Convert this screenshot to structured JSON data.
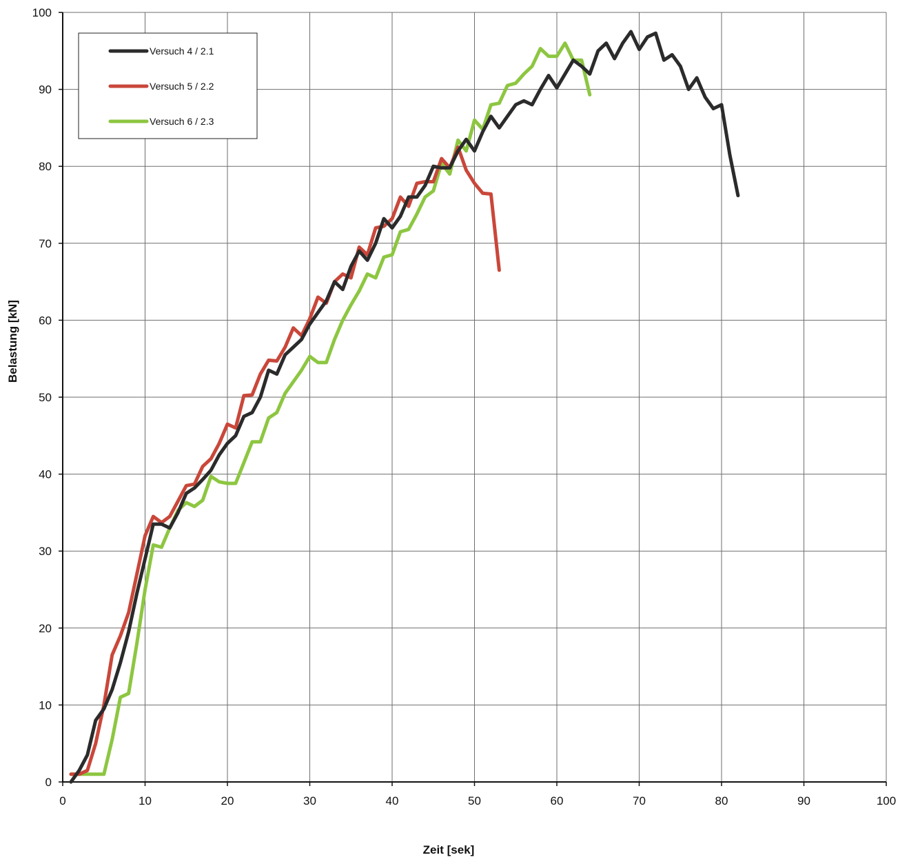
{
  "chart_data": {
    "type": "line",
    "title": "",
    "xlabel": "Zeit [sek]",
    "ylabel": "Belastung [kN]",
    "xlim": [
      0,
      100
    ],
    "ylim": [
      0,
      100
    ],
    "xticks": [
      0,
      10,
      20,
      30,
      40,
      50,
      60,
      70,
      80,
      90,
      100
    ],
    "yticks": [
      0,
      10,
      20,
      30,
      40,
      50,
      60,
      70,
      80,
      90,
      100
    ],
    "grid": true,
    "legend_position": "top-left",
    "series": [
      {
        "name": "Versuch 4 / 2.1",
        "color": "#2b2b2b",
        "points": [
          [
            1,
            0
          ],
          [
            2,
            1.5
          ],
          [
            3,
            3.5
          ],
          [
            4,
            8
          ],
          [
            5,
            9.5
          ],
          [
            6,
            12
          ],
          [
            7,
            15.5
          ],
          [
            8,
            19.5
          ],
          [
            9,
            24.5
          ],
          [
            10,
            29
          ],
          [
            11,
            33.5
          ],
          [
            12,
            33.5
          ],
          [
            13,
            33
          ],
          [
            14,
            35
          ],
          [
            15,
            37.5
          ],
          [
            16,
            38.2
          ],
          [
            17,
            39.3
          ],
          [
            18,
            40.5
          ],
          [
            19,
            42.5
          ],
          [
            20,
            44
          ],
          [
            21,
            45
          ],
          [
            22,
            47.5
          ],
          [
            23,
            48
          ],
          [
            24,
            50
          ],
          [
            25,
            53.5
          ],
          [
            26,
            53
          ],
          [
            27,
            55.5
          ],
          [
            28,
            56.5
          ],
          [
            29,
            57.5
          ],
          [
            30,
            59.5
          ],
          [
            31,
            61
          ],
          [
            32,
            62.5
          ],
          [
            33,
            65
          ],
          [
            34,
            64
          ],
          [
            35,
            67
          ],
          [
            36,
            69
          ],
          [
            37,
            67.8
          ],
          [
            38,
            70
          ],
          [
            39,
            73.2
          ],
          [
            40,
            72
          ],
          [
            41,
            73.5
          ],
          [
            42,
            76
          ],
          [
            43,
            76
          ],
          [
            44,
            77.5
          ],
          [
            45,
            80
          ],
          [
            46,
            79.8
          ],
          [
            47,
            79.8
          ],
          [
            48,
            82
          ],
          [
            49,
            83.5
          ],
          [
            50,
            82
          ],
          [
            51,
            84.5
          ],
          [
            52,
            86.5
          ],
          [
            53,
            85
          ],
          [
            54,
            86.5
          ],
          [
            55,
            88
          ],
          [
            56,
            88.5
          ],
          [
            57,
            88
          ],
          [
            58,
            90
          ],
          [
            59,
            91.8
          ],
          [
            60,
            90.2
          ],
          [
            61,
            92
          ],
          [
            62,
            93.8
          ],
          [
            63,
            93
          ],
          [
            64,
            92
          ],
          [
            65,
            95
          ],
          [
            66,
            96
          ],
          [
            67,
            94
          ],
          [
            68,
            96
          ],
          [
            69,
            97.5
          ],
          [
            70,
            95.2
          ],
          [
            71,
            96.8
          ],
          [
            72,
            97.3
          ],
          [
            73,
            93.8
          ],
          [
            74,
            94.5
          ],
          [
            75,
            93
          ],
          [
            76,
            90
          ],
          [
            77,
            91.5
          ],
          [
            78,
            89
          ],
          [
            79,
            87.5
          ],
          [
            80,
            88
          ],
          [
            81,
            81.5
          ],
          [
            82,
            76.2
          ]
        ]
      },
      {
        "name": "Versuch 5 / 2.2",
        "color": "#c9473a",
        "points": [
          [
            1,
            1
          ],
          [
            2,
            1
          ],
          [
            3,
            1.5
          ],
          [
            4,
            5
          ],
          [
            5,
            10
          ],
          [
            6,
            16.5
          ],
          [
            7,
            19
          ],
          [
            8,
            22
          ],
          [
            9,
            27
          ],
          [
            10,
            32
          ],
          [
            11,
            34.5
          ],
          [
            12,
            33.7
          ],
          [
            13,
            34.5
          ],
          [
            14,
            36.5
          ],
          [
            15,
            38.5
          ],
          [
            16,
            38.7
          ],
          [
            17,
            41
          ],
          [
            18,
            42
          ],
          [
            19,
            44
          ],
          [
            20,
            46.5
          ],
          [
            21,
            46
          ],
          [
            22,
            50.2
          ],
          [
            23,
            50.3
          ],
          [
            24,
            53
          ],
          [
            25,
            54.8
          ],
          [
            26,
            54.7
          ],
          [
            27,
            56.5
          ],
          [
            28,
            59
          ],
          [
            29,
            58
          ],
          [
            30,
            60.2
          ],
          [
            31,
            63
          ],
          [
            32,
            62.2
          ],
          [
            33,
            65
          ],
          [
            34,
            66
          ],
          [
            35,
            65.5
          ],
          [
            36,
            69.5
          ],
          [
            37,
            68.5
          ],
          [
            38,
            72
          ],
          [
            39,
            72.2
          ],
          [
            40,
            73.2
          ],
          [
            41,
            76
          ],
          [
            42,
            74.8
          ],
          [
            43,
            77.8
          ],
          [
            44,
            78
          ],
          [
            45,
            78
          ],
          [
            46,
            81
          ],
          [
            47,
            79.8
          ],
          [
            48,
            82.5
          ],
          [
            49,
            79.5
          ],
          [
            50,
            77.8
          ],
          [
            51,
            76.5
          ],
          [
            52,
            76.4
          ],
          [
            53,
            66.5
          ]
        ]
      },
      {
        "name": "Versuch 6 / 2.3",
        "color": "#8dc641",
        "points": [
          [
            1,
            1
          ],
          [
            2,
            1
          ],
          [
            3,
            1
          ],
          [
            4,
            1
          ],
          [
            5,
            1
          ],
          [
            6,
            5.5
          ],
          [
            7,
            11
          ],
          [
            8,
            11.5
          ],
          [
            9,
            18
          ],
          [
            10,
            25
          ],
          [
            11,
            30.8
          ],
          [
            12,
            30.5
          ],
          [
            13,
            33
          ],
          [
            14,
            35.3
          ],
          [
            15,
            36.3
          ],
          [
            16,
            35.8
          ],
          [
            17,
            36.6
          ],
          [
            18,
            39.7
          ],
          [
            19,
            39
          ],
          [
            20,
            38.8
          ],
          [
            21,
            38.8
          ],
          [
            22,
            41.5
          ],
          [
            23,
            44.2
          ],
          [
            24,
            44.2
          ],
          [
            25,
            47.3
          ],
          [
            26,
            48
          ],
          [
            27,
            50.5
          ],
          [
            28,
            52
          ],
          [
            29,
            53.5
          ],
          [
            30,
            55.3
          ],
          [
            31,
            54.5
          ],
          [
            32,
            54.5
          ],
          [
            33,
            57.5
          ],
          [
            34,
            60
          ],
          [
            35,
            62
          ],
          [
            36,
            63.8
          ],
          [
            37,
            66
          ],
          [
            38,
            65.5
          ],
          [
            39,
            68.2
          ],
          [
            40,
            68.5
          ],
          [
            41,
            71.5
          ],
          [
            42,
            71.8
          ],
          [
            43,
            73.8
          ],
          [
            44,
            76
          ],
          [
            45,
            76.8
          ],
          [
            46,
            80.4
          ],
          [
            47,
            79
          ],
          [
            48,
            83.4
          ],
          [
            49,
            82
          ],
          [
            50,
            86
          ],
          [
            51,
            84.8
          ],
          [
            52,
            88
          ],
          [
            53,
            88.2
          ],
          [
            54,
            90.5
          ],
          [
            55,
            90.8
          ],
          [
            56,
            92
          ],
          [
            57,
            93
          ],
          [
            58,
            95.3
          ],
          [
            59,
            94.3
          ],
          [
            60,
            94.3
          ],
          [
            61,
            96
          ],
          [
            62,
            93.8
          ],
          [
            63,
            93.8
          ],
          [
            64,
            89.3
          ]
        ]
      }
    ]
  }
}
